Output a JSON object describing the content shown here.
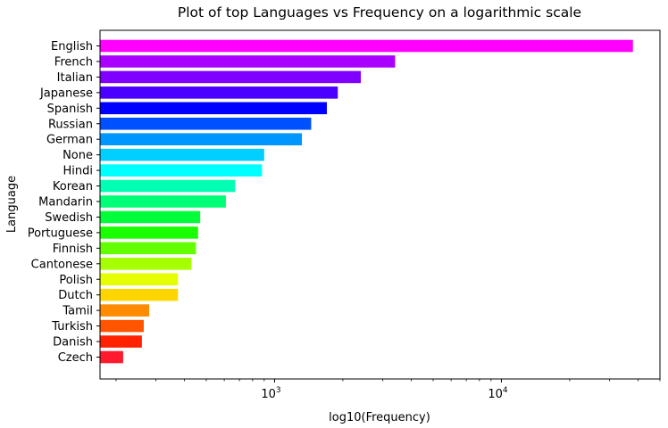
{
  "chart_data": {
    "type": "bar",
    "orientation": "horizontal",
    "title": "Plot of top Languages vs Frequency on a logarithmic scale",
    "xlabel": "log10(Frequency)",
    "ylabel": "Language",
    "xscale": "log",
    "xlim": [
      170,
      50000
    ],
    "grid": false,
    "x_ticks": [
      {
        "value": 1000,
        "base": "10",
        "exp": "3"
      },
      {
        "value": 10000,
        "base": "10",
        "exp": "4"
      }
    ],
    "categories": [
      "English",
      "French",
      "Italian",
      "Japanese",
      "Spanish",
      "Russian",
      "German",
      "None",
      "Hindi",
      "Korean",
      "Mandarin",
      "Swedish",
      "Portuguese",
      "Finnish",
      "Cantonese",
      "Polish",
      "Dutch",
      "Tamil",
      "Turkish",
      "Danish",
      "Czech"
    ],
    "values": [
      38000,
      3400,
      2400,
      1900,
      1700,
      1450,
      1320,
      900,
      880,
      670,
      610,
      470,
      460,
      450,
      430,
      375,
      375,
      280,
      265,
      260,
      215
    ],
    "colors": [
      "#ff00ff",
      "#aa00ff",
      "#7f00ff",
      "#4b00ff",
      "#0000ff",
      "#0050ff",
      "#0096ff",
      "#00cfff",
      "#00ffff",
      "#00ffb2",
      "#00ff77",
      "#00ff3a",
      "#1aff00",
      "#63ff00",
      "#a6ff00",
      "#e5ff00",
      "#ffd500",
      "#ff8b00",
      "#ff5500",
      "#ff2200",
      "#ff1a2e"
    ]
  }
}
